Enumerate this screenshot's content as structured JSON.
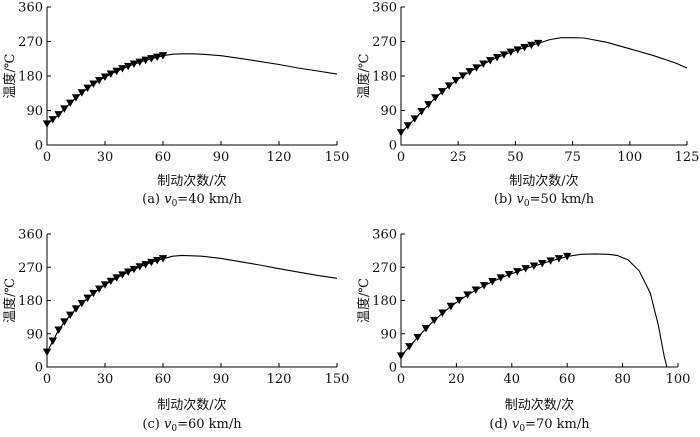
{
  "chart_data": [
    {
      "type": "line",
      "caption_prefix": "(a) ",
      "caption_var": "v",
      "caption_sub": "0",
      "caption_rest": "=40 km/h",
      "xlabel": "制动次数/次",
      "ylabel": "温度/℃",
      "xlim": [
        0,
        150
      ],
      "ylim": [
        0,
        360
      ],
      "xticks": [
        "0",
        "30",
        "60",
        "90",
        "120",
        "150"
      ],
      "yticks": [
        "0",
        "90",
        "180",
        "270",
        "360"
      ],
      "markers": {
        "x": [
          0,
          3,
          6,
          9,
          12,
          15,
          18,
          21,
          24,
          27,
          30,
          33,
          36,
          39,
          42,
          45,
          48,
          51,
          54,
          57,
          60
        ],
        "y": [
          55,
          66,
          79,
          94,
          109,
          123,
          136,
          148,
          159,
          168,
          177,
          185,
          192,
          199,
          205,
          211,
          216,
          221,
          225,
          229,
          233
        ]
      },
      "curve": {
        "x": [
          60,
          65,
          70,
          75,
          80,
          90,
          100,
          110,
          120,
          130,
          140,
          150
        ],
        "y": [
          233,
          237,
          238,
          238,
          237,
          233,
          226,
          218,
          210,
          201,
          193,
          185
        ]
      }
    },
    {
      "type": "line",
      "caption_prefix": "(b) ",
      "caption_var": "v",
      "caption_sub": "0",
      "caption_rest": "=50 km/h",
      "xlabel": "制动次数/次",
      "ylabel": "温度/℃",
      "xlim": [
        0,
        125
      ],
      "ylim": [
        0,
        360
      ],
      "xticks": [
        "0",
        "25",
        "50",
        "75",
        "100",
        "125"
      ],
      "yticks": [
        "0",
        "90",
        "180",
        "270",
        "360"
      ],
      "markers": {
        "x": [
          0,
          3,
          6,
          9,
          12,
          15,
          18,
          21,
          24,
          27,
          30,
          33,
          36,
          39,
          42,
          45,
          48,
          51,
          54,
          57,
          60
        ],
        "y": [
          32,
          50,
          68,
          87,
          105,
          123,
          139,
          154,
          168,
          180,
          191,
          201,
          211,
          220,
          228,
          235,
          242,
          248,
          254,
          260,
          265
        ]
      },
      "curve": {
        "x": [
          60,
          65,
          70,
          75,
          80,
          90,
          100,
          110,
          120,
          125
        ],
        "y": [
          265,
          275,
          280,
          280,
          279,
          268,
          251,
          234,
          214,
          201
        ]
      }
    },
    {
      "type": "line",
      "caption_prefix": "(c) ",
      "caption_var": "v",
      "caption_sub": "0",
      "caption_rest": "=60 km/h",
      "xlabel": "制动次数/次",
      "ylabel": "温度/℃",
      "xlim": [
        0,
        150
      ],
      "ylim": [
        0,
        360
      ],
      "xticks": [
        "0",
        "30",
        "60",
        "90",
        "120",
        "150"
      ],
      "yticks": [
        "0",
        "90",
        "180",
        "270",
        "360"
      ],
      "markers": {
        "x": [
          0,
          3,
          6,
          9,
          12,
          15,
          18,
          21,
          24,
          27,
          30,
          33,
          36,
          39,
          42,
          45,
          48,
          51,
          54,
          57,
          60
        ],
        "y": [
          40,
          70,
          100,
          122,
          140,
          157,
          172,
          186,
          199,
          211,
          222,
          232,
          241,
          249,
          257,
          264,
          271,
          277,
          283,
          288,
          293
        ]
      },
      "curve": {
        "x": [
          60,
          65,
          70,
          75,
          80,
          90,
          100,
          110,
          120,
          130,
          140,
          150
        ],
        "y": [
          293,
          300,
          302,
          301,
          300,
          294,
          285,
          276,
          266,
          257,
          248,
          240
        ]
      }
    },
    {
      "type": "line",
      "caption_prefix": "(d) ",
      "caption_var": "v",
      "caption_sub": "0",
      "caption_rest": "=70 km/h",
      "xlabel": "制动次数/次",
      "ylabel": "温度/℃",
      "xlim": [
        0,
        100
      ],
      "ylim": [
        0,
        360
      ],
      "xticks": [
        "0",
        "20",
        "40",
        "60",
        "80",
        "100"
      ],
      "yticks": [
        "0",
        "90",
        "180",
        "270",
        "360"
      ],
      "markers": {
        "x": [
          0,
          3,
          6,
          9,
          12,
          15,
          18,
          21,
          24,
          27,
          30,
          33,
          36,
          39,
          42,
          45,
          48,
          51,
          54,
          57,
          60
        ],
        "y": [
          30,
          55,
          80,
          104,
          126,
          146,
          164,
          180,
          195,
          208,
          220,
          231,
          241,
          250,
          258,
          266,
          273,
          280,
          287,
          293,
          299
        ]
      },
      "curve": {
        "x": [
          60,
          65,
          70,
          75,
          78,
          82,
          86,
          90,
          93,
          95,
          96
        ],
        "y": [
          299,
          305,
          306,
          305,
          302,
          290,
          260,
          200,
          110,
          30,
          0
        ]
      }
    }
  ]
}
